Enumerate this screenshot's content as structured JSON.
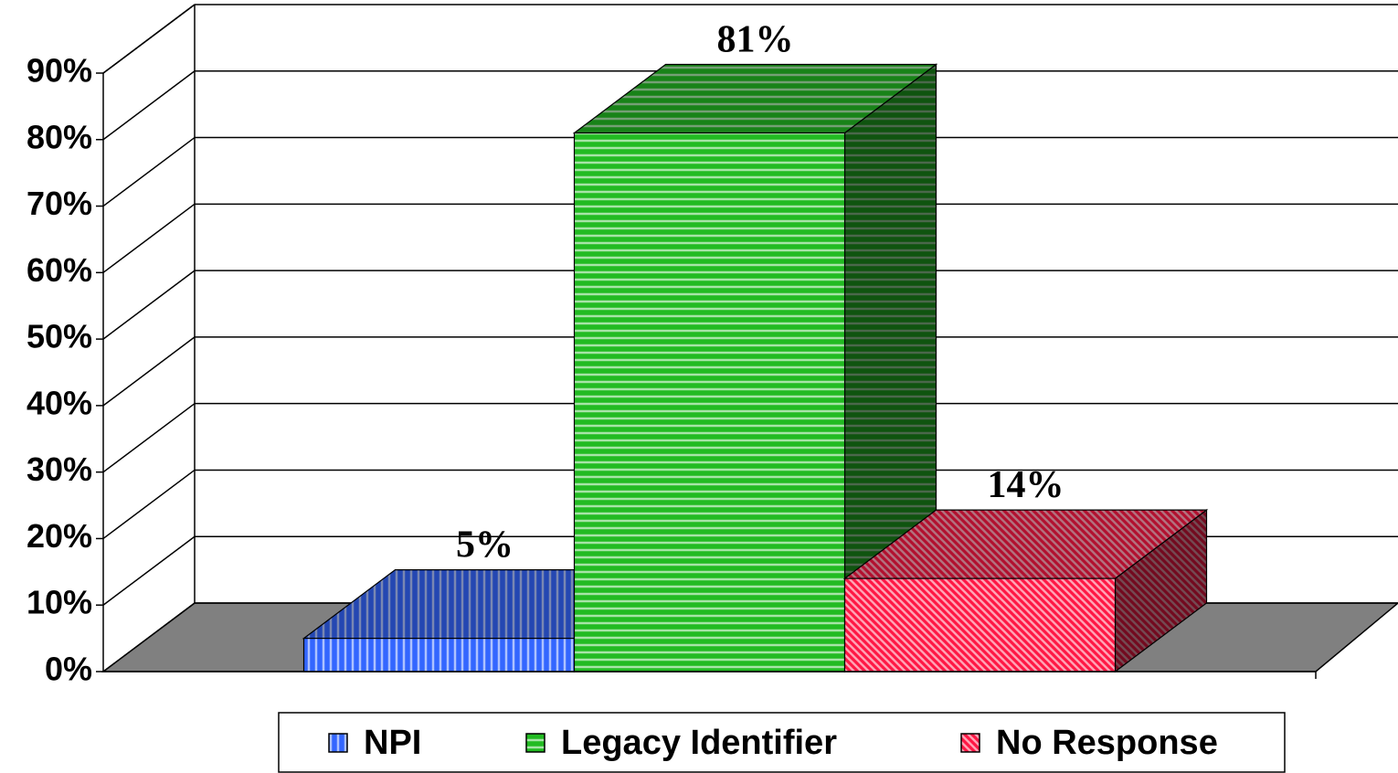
{
  "chart_data": {
    "type": "bar3d",
    "categories": [
      null
    ],
    "series": [
      {
        "name": "NPI",
        "color": "#3366ff",
        "hatch": "vertical",
        "values": [
          5
        ],
        "value_labels": [
          "5%"
        ]
      },
      {
        "name": "Legacy Identifier",
        "color": "#22bb22",
        "hatch": "horizontal",
        "values": [
          81
        ],
        "value_labels": [
          "81%"
        ]
      },
      {
        "name": "No Response",
        "color": "#ff1744",
        "hatch": "diagonal",
        "values": [
          14
        ],
        "value_labels": [
          "14%"
        ]
      }
    ],
    "ylim": [
      0,
      90
    ],
    "yticks": [
      {
        "value": 0,
        "label": "0%"
      },
      {
        "value": 10,
        "label": "10%"
      },
      {
        "value": 20,
        "label": "20%"
      },
      {
        "value": 30,
        "label": "30%"
      },
      {
        "value": 40,
        "label": "40%"
      },
      {
        "value": 50,
        "label": "50%"
      },
      {
        "value": 60,
        "label": "60%"
      },
      {
        "value": 70,
        "label": "70%"
      },
      {
        "value": 80,
        "label": "80%"
      },
      {
        "value": 90,
        "label": "90%"
      }
    ],
    "grid": true,
    "legend": "bottom"
  }
}
